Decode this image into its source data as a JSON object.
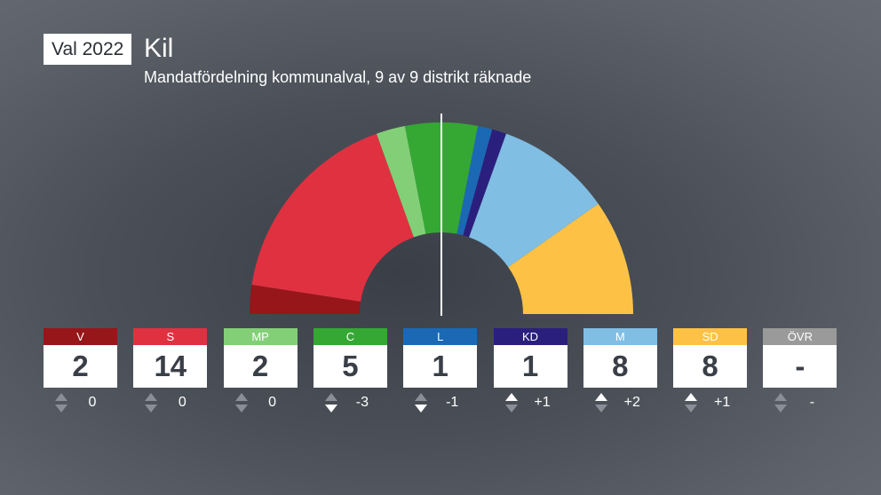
{
  "header": {
    "badge": "Val 2022",
    "title": "Kil",
    "subtitle": "Mandatfördelning kommunalval, 9 av 9 distrikt räknade"
  },
  "chart_data": {
    "type": "pie",
    "variant": "parliament-half-donut",
    "total_seats": 41,
    "majority_marker": true,
    "parties": [
      {
        "name": "V",
        "seats": 2,
        "seats_label": "2",
        "change": "0",
        "direction": "none",
        "color": "#96161a"
      },
      {
        "name": "S",
        "seats": 14,
        "seats_label": "14",
        "change": "0",
        "direction": "none",
        "color": "#e03141"
      },
      {
        "name": "MP",
        "seats": 2,
        "seats_label": "2",
        "change": "0",
        "direction": "none",
        "color": "#83cf78"
      },
      {
        "name": "C",
        "seats": 5,
        "seats_label": "5",
        "change": "-3",
        "direction": "down",
        "color": "#35a834"
      },
      {
        "name": "L",
        "seats": 1,
        "seats_label": "1",
        "change": "-1",
        "direction": "down",
        "color": "#1b69b5"
      },
      {
        "name": "KD",
        "seats": 1,
        "seats_label": "1",
        "change": "+1",
        "direction": "up",
        "color": "#2b1f7e"
      },
      {
        "name": "M",
        "seats": 8,
        "seats_label": "8",
        "change": "+2",
        "direction": "up",
        "color": "#80bee4"
      },
      {
        "name": "SD",
        "seats": 8,
        "seats_label": "8",
        "change": "+1",
        "direction": "up",
        "color": "#fdc245"
      },
      {
        "name": "ÖVR",
        "seats": 0,
        "seats_label": "-",
        "change": "-",
        "direction": "none",
        "color": "#9a9a9a"
      }
    ]
  }
}
